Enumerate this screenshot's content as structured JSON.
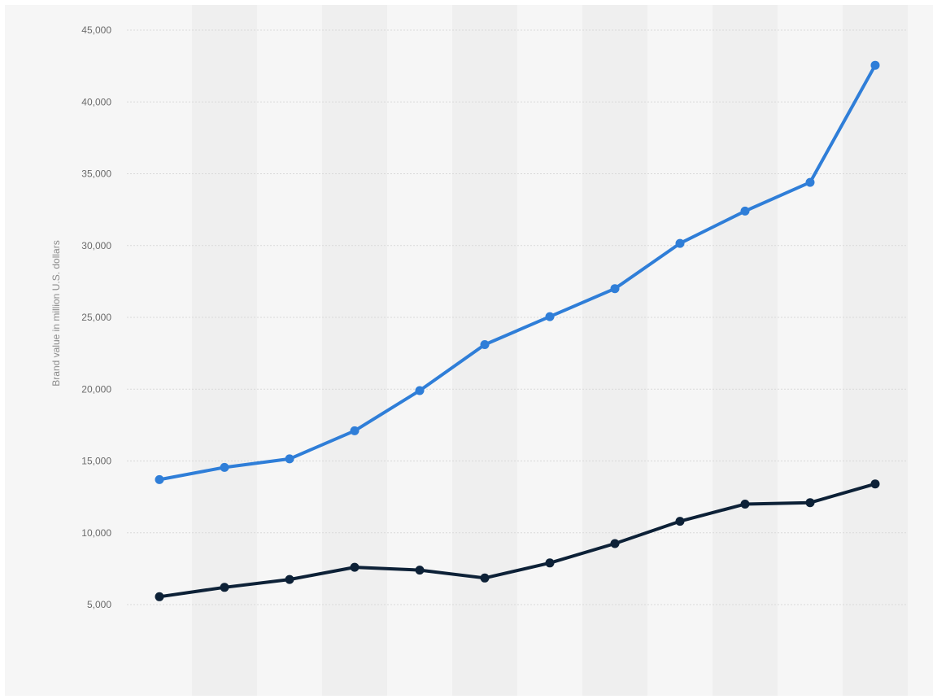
{
  "chart_data": {
    "type": "line",
    "title": "",
    "xlabel": "",
    "ylabel": "Brand value in million U.S. dollars",
    "x": [
      1,
      2,
      3,
      4,
      5,
      6,
      7,
      8,
      9,
      10,
      11,
      12
    ],
    "ylim": [
      5000,
      45000
    ],
    "yticks": [
      5000,
      10000,
      15000,
      20000,
      25000,
      30000,
      35000,
      40000,
      45000
    ],
    "ytick_labels": [
      "5,000",
      "10,000",
      "15,000",
      "20,000",
      "25,000",
      "30,000",
      "35,000",
      "40,000",
      "45,000"
    ],
    "grid": true,
    "legend": "none",
    "series": [
      {
        "color": "#2f7ed8",
        "values": [
          13700,
          14550,
          15150,
          17100,
          19900,
          23100,
          25050,
          27000,
          30150,
          32400,
          34400,
          42550
        ]
      },
      {
        "color": "#0d2137",
        "values": [
          5550,
          6200,
          6750,
          7600,
          7400,
          6850,
          7900,
          9250,
          10800,
          12000,
          12100,
          13400
        ]
      }
    ]
  }
}
